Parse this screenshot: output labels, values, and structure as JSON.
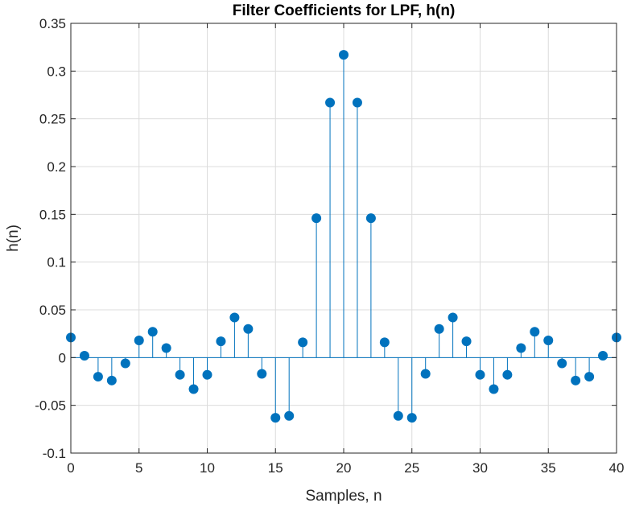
{
  "chart_data": {
    "type": "stem",
    "title": "Filter Coefficients for LPF, h(n)",
    "xlabel": "Samples, n",
    "ylabel": "h(n)",
    "xlim": [
      0,
      40
    ],
    "ylim": [
      -0.1,
      0.35
    ],
    "xticks": [
      0,
      5,
      10,
      15,
      20,
      25,
      30,
      35,
      40
    ],
    "xtick_labels": [
      "0",
      "5",
      "10",
      "15",
      "20",
      "25",
      "30",
      "35",
      "40"
    ],
    "yticks": [
      -0.1,
      -0.05,
      0,
      0.05,
      0.1,
      0.15,
      0.2,
      0.25,
      0.3,
      0.35
    ],
    "ytick_labels": [
      "-0.1",
      "-0.05",
      "0",
      "0.05",
      "0.1",
      "0.15",
      "0.2",
      "0.25",
      "0.3",
      "0.35"
    ],
    "grid": true,
    "color": "#0072BD",
    "x": [
      0,
      1,
      2,
      3,
      4,
      5,
      6,
      7,
      8,
      9,
      10,
      11,
      12,
      13,
      14,
      15,
      16,
      17,
      18,
      19,
      20,
      21,
      22,
      23,
      24,
      25,
      26,
      27,
      28,
      29,
      30,
      31,
      32,
      33,
      34,
      35,
      36,
      37,
      38,
      39,
      40
    ],
    "values": [
      0.021,
      0.002,
      -0.02,
      -0.024,
      -0.006,
      0.018,
      0.027,
      0.01,
      -0.018,
      -0.033,
      -0.018,
      0.017,
      0.042,
      0.03,
      -0.017,
      -0.063,
      -0.061,
      0.016,
      0.146,
      0.267,
      0.317,
      0.267,
      0.146,
      0.016,
      -0.061,
      -0.063,
      -0.017,
      0.03,
      0.042,
      0.017,
      -0.018,
      -0.033,
      -0.018,
      0.01,
      0.027,
      0.018,
      -0.006,
      -0.024,
      -0.02,
      0.002,
      0.021
    ]
  }
}
